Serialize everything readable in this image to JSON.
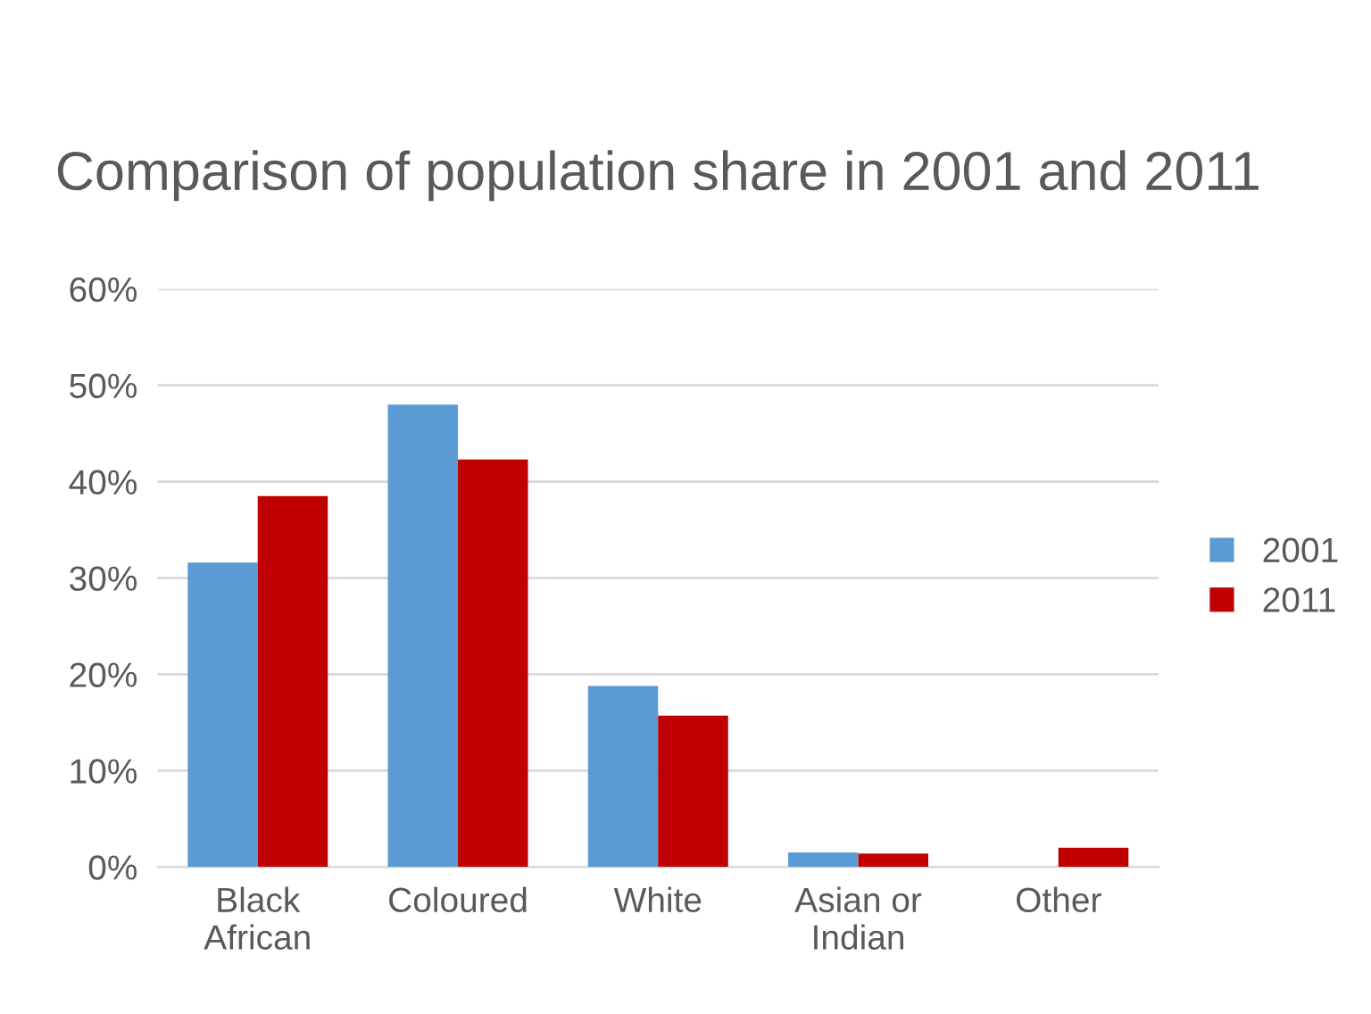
{
  "chart_data": {
    "type": "bar",
    "title": "Comparison of population share in 2001 and 2011",
    "categories": [
      "Black\nAfrican",
      "Coloured",
      "White",
      "Asian or\nIndian",
      "Other"
    ],
    "series": [
      {
        "name": "2001",
        "color": "#5b9bd5",
        "values": [
          31.6,
          48.0,
          18.8,
          1.5,
          0
        ]
      },
      {
        "name": "2011",
        "color": "#c00000",
        "values": [
          38.5,
          42.3,
          15.7,
          1.4,
          2.0
        ]
      }
    ],
    "ylim": [
      0,
      60
    ],
    "yticks": [
      {
        "value": 0,
        "label": "0%"
      },
      {
        "value": 10,
        "label": "10%"
      },
      {
        "value": 20,
        "label": "20%"
      },
      {
        "value": 30,
        "label": "30%"
      },
      {
        "value": 40,
        "label": "40%"
      },
      {
        "value": 50,
        "label": "50%"
      },
      {
        "value": 60,
        "label": "60%"
      }
    ],
    "grid": "y",
    "legend": "right"
  }
}
